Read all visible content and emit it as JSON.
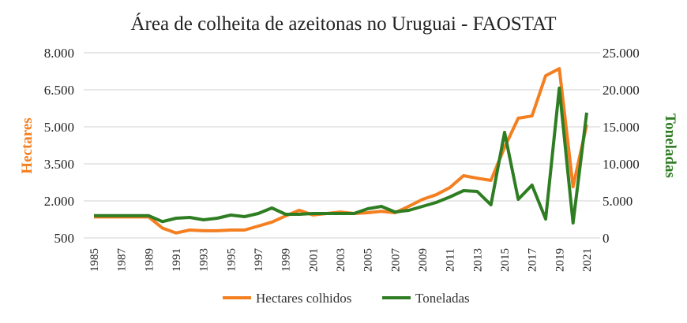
{
  "chart_data": {
    "type": "line",
    "title": "Área de colheita de azeitonas no Uruguai - FAOSTAT",
    "xlabel": "",
    "ylabel": "Hectares",
    "y2label": "Toneladas",
    "ylim": [
      500,
      8000
    ],
    "y2lim": [
      0,
      25000
    ],
    "yticks": [
      "500",
      "2.000",
      "3.500",
      "5.000",
      "6.500",
      "8.000"
    ],
    "y2ticks": [
      "0",
      "5.000",
      "10.000",
      "15.000",
      "20.000",
      "25.000"
    ],
    "ytick_values": [
      500,
      2000,
      3500,
      5000,
      6500,
      8000
    ],
    "y2tick_values": [
      0,
      5000,
      10000,
      15000,
      20000,
      25000
    ],
    "x": [
      1985,
      1986,
      1987,
      1988,
      1989,
      1990,
      1991,
      1992,
      1993,
      1994,
      1995,
      1996,
      1997,
      1998,
      1999,
      2000,
      2001,
      2002,
      2003,
      2004,
      2005,
      2006,
      2007,
      2008,
      2009,
      2010,
      2011,
      2012,
      2013,
      2014,
      2015,
      2016,
      2017,
      2018,
      2019,
      2020,
      2021
    ],
    "xtick_labels": [
      "1985",
      "1987",
      "1989",
      "1991",
      "1993",
      "1995",
      "1997",
      "1999",
      "2001",
      "2003",
      "2005",
      "2007",
      "2009",
      "2011",
      "2013",
      "2015",
      "2017",
      "2019",
      "2021"
    ],
    "grid": true,
    "legend_position": "bottom",
    "colors": {
      "hectares": "#F47F20",
      "toneladas": "#2E7D22"
    },
    "series": [
      {
        "name": "Hectares colhidos",
        "axis": "left",
        "values": [
          1350,
          1350,
          1350,
          1350,
          1350,
          900,
          700,
          820,
          790,
          790,
          820,
          820,
          980,
          1140,
          1390,
          1620,
          1430,
          1490,
          1550,
          1490,
          1520,
          1580,
          1520,
          1780,
          2060,
          2250,
          2540,
          3020,
          2920,
          2830,
          4170,
          5350,
          5440,
          7070,
          7360,
          2570,
          5090
        ]
      },
      {
        "name": "Toneladas",
        "axis": "right",
        "values": [
          3000,
          3000,
          3000,
          3000,
          3000,
          2200,
          2660,
          2770,
          2450,
          2660,
          3090,
          2870,
          3300,
          4040,
          3190,
          3190,
          3300,
          3300,
          3300,
          3300,
          3940,
          4260,
          3500,
          3720,
          4260,
          4790,
          5530,
          6380,
          6280,
          4470,
          14260,
          5210,
          7130,
          2550,
          20220,
          2020,
          16920
        ]
      }
    ]
  }
}
